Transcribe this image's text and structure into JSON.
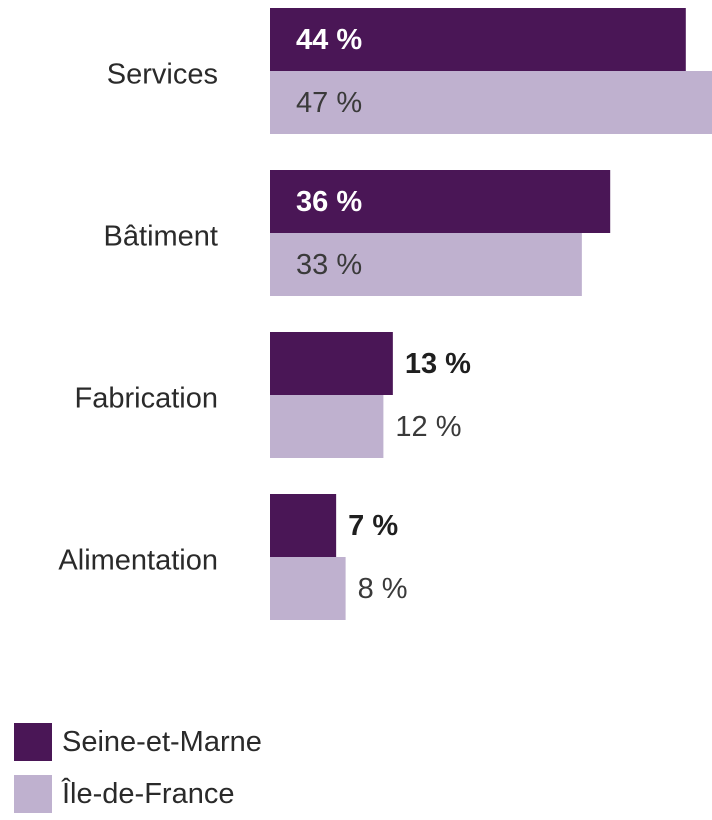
{
  "colors": {
    "seine_et_marne": "#4a1656",
    "ile_de_france": "#bfb1cf",
    "text_dark": "#1f1f1f",
    "text_on_dark": "#ffffff",
    "text_light_value": "#3a3a3a"
  },
  "chart_data": {
    "type": "bar",
    "orientation": "horizontal",
    "categories": [
      "Services",
      "Bâtiment",
      "Fabrication",
      "Alimentation"
    ],
    "series": [
      {
        "name": "Seine-et-Marne",
        "values": [
          44,
          36,
          13,
          7
        ],
        "labels": [
          "44 %",
          "36 %",
          "13 %",
          "7 %"
        ]
      },
      {
        "name": "Île-de-France",
        "values": [
          47,
          33,
          12,
          8
        ],
        "labels": [
          "47 %",
          "33 %",
          "12 %",
          "8 %"
        ]
      }
    ],
    "legend_position": "bottom-left",
    "grid": false
  },
  "legend": {
    "items": [
      {
        "label": "Seine-et-Marne",
        "color_key": "seine_et_marne"
      },
      {
        "label": "Île-de-France",
        "color_key": "ile_de_france"
      }
    ]
  }
}
